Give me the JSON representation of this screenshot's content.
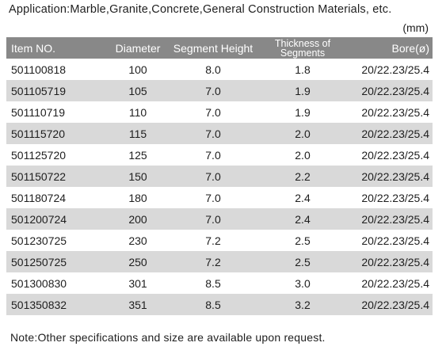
{
  "application": "Application:Marble,Granite,Concrete,General Construction Materials, etc.",
  "unit": "(mm)",
  "table": {
    "headers": {
      "item": "Item NO.",
      "diameter": "Diameter",
      "segment_height": "Segment Height",
      "thickness_line1": "Thickness of",
      "thickness_line2": "Segments",
      "bore": "Bore(ø)"
    },
    "rows": [
      {
        "item": "501100818",
        "diameter": "100",
        "segment_height": "8.0",
        "thickness": "1.8",
        "bore": "20/22.23/25.4"
      },
      {
        "item": "501105719",
        "diameter": "105",
        "segment_height": "7.0",
        "thickness": "1.9",
        "bore": "20/22.23/25.4"
      },
      {
        "item": "501110719",
        "diameter": "110",
        "segment_height": "7.0",
        "thickness": "1.9",
        "bore": "20/22.23/25.4"
      },
      {
        "item": "501115720",
        "diameter": "115",
        "segment_height": "7.0",
        "thickness": "2.0",
        "bore": "20/22.23/25.4"
      },
      {
        "item": "501125720",
        "diameter": "125",
        "segment_height": "7.0",
        "thickness": "2.0",
        "bore": "20/22.23/25.4"
      },
      {
        "item": "501150722",
        "diameter": "150",
        "segment_height": "7.0",
        "thickness": "2.2",
        "bore": "20/22.23/25.4"
      },
      {
        "item": "501180724",
        "diameter": "180",
        "segment_height": "7.0",
        "thickness": "2.4",
        "bore": "20/22.23/25.4"
      },
      {
        "item": "501200724",
        "diameter": "200",
        "segment_height": "7.0",
        "thickness": "2.4",
        "bore": "20/22.23/25.4"
      },
      {
        "item": "501230725",
        "diameter": "230",
        "segment_height": "7.2",
        "thickness": "2.5",
        "bore": "20/22.23/25.4"
      },
      {
        "item": "501250725",
        "diameter": "250",
        "segment_height": "7.2",
        "thickness": "2.5",
        "bore": "20/22.23/25.4"
      },
      {
        "item": "501300830",
        "diameter": "301",
        "segment_height": "8.5",
        "thickness": "3.0",
        "bore": "20/22.23/25.4"
      },
      {
        "item": "501350832",
        "diameter": "351",
        "segment_height": "8.5",
        "thickness": "3.2",
        "bore": "20/22.23/25.4"
      }
    ]
  },
  "note": "Note:Other specifications and size are available upon request.",
  "colors": {
    "header_bg": "#888888",
    "stripe_bg": "#d9d9d9",
    "text": "#1e1e1e"
  }
}
